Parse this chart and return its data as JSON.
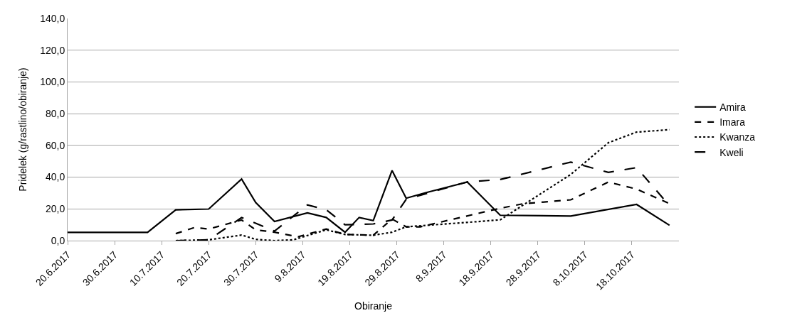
{
  "chart_data": {
    "type": "line",
    "xlabel": "Obiranje",
    "ylabel": "Pridelek (g/rastlino/obiranje)",
    "xlim": [
      "2017-06-20",
      "2017-10-28"
    ],
    "xticks": [
      {
        "value": "2017-06-20",
        "label": "20.6.2017"
      },
      {
        "value": "2017-06-30",
        "label": "30.6.2017"
      },
      {
        "value": "2017-07-10",
        "label": "10.7.2017"
      },
      {
        "value": "2017-07-20",
        "label": "20.7.2017"
      },
      {
        "value": "2017-07-30",
        "label": "30.7.2017"
      },
      {
        "value": "2017-08-09",
        "label": "9.8.2017"
      },
      {
        "value": "2017-08-19",
        "label": "19.8.2017"
      },
      {
        "value": "2017-08-29",
        "label": "29.8.2017"
      },
      {
        "value": "2017-09-08",
        "label": "8.9.2017"
      },
      {
        "value": "2017-09-18",
        "label": "18.9.2017"
      },
      {
        "value": "2017-09-28",
        "label": "28.9.2017"
      },
      {
        "value": "2017-10-08",
        "label": "8.10.2017"
      },
      {
        "value": "2017-10-18",
        "label": "18.10.2017"
      }
    ],
    "ylim": [
      0,
      140
    ],
    "yticks": [
      {
        "value": 0,
        "label": "0,0"
      },
      {
        "value": 20,
        "label": "20,0"
      },
      {
        "value": 40,
        "label": "40,0"
      },
      {
        "value": 60,
        "label": "60,0"
      },
      {
        "value": 80,
        "label": "80,0"
      },
      {
        "value": 100,
        "label": "100,0"
      },
      {
        "value": 120,
        "label": "120,0"
      },
      {
        "value": 140,
        "label": "140,0"
      }
    ],
    "grid": "y",
    "legend": "right",
    "marker": "none",
    "series": [
      {
        "name": "Amira",
        "color": "#000000",
        "line_style": "solid",
        "x": [
          "2017-06-20",
          "2017-07-07",
          "2017-07-13",
          "2017-07-20",
          "2017-07-27",
          "2017-07-30",
          "2017-08-03",
          "2017-08-10",
          "2017-08-14",
          "2017-08-18",
          "2017-08-21",
          "2017-08-24",
          "2017-08-28",
          "2017-08-31",
          "2017-09-04",
          "2017-09-13",
          "2017-09-20",
          "2017-10-05",
          "2017-10-19",
          "2017-10-26"
        ],
        "values": [
          5.2,
          5.2,
          19.4,
          19.9,
          38.8,
          24,
          12.1,
          17.5,
          14.6,
          5.3,
          14.6,
          12.6,
          44.2,
          26.7,
          30.1,
          36.9,
          16,
          15.5,
          22.8,
          9.7
        ]
      },
      {
        "name": "Imara",
        "color": "#000000",
        "line_style": "dashed",
        "x": [
          "2017-07-13",
          "2017-07-17",
          "2017-07-20",
          "2017-07-27",
          "2017-07-30",
          "2017-08-03",
          "2017-08-08",
          "2017-08-14",
          "2017-08-18",
          "2017-08-24",
          "2017-08-28",
          "2017-08-31",
          "2017-09-03",
          "2017-09-20",
          "2017-09-25",
          "2017-10-05",
          "2017-10-13",
          "2017-10-19",
          "2017-10-26"
        ],
        "values": [
          4.4,
          8.3,
          7.3,
          13,
          6.8,
          5.3,
          2.4,
          7.3,
          3.9,
          3.4,
          13.6,
          8.7,
          8.7,
          20.4,
          23.3,
          25.7,
          36.9,
          32.5,
          23.3
        ]
      },
      {
        "name": "Kwanza",
        "color": "#000000",
        "line_style": "dotted",
        "x": [
          "2017-07-13",
          "2017-07-20",
          "2017-07-27",
          "2017-07-30",
          "2017-08-03",
          "2017-08-07",
          "2017-08-14",
          "2017-08-18",
          "2017-08-24",
          "2017-08-28",
          "2017-08-31",
          "2017-09-13",
          "2017-09-20",
          "2017-10-05",
          "2017-10-13",
          "2017-10-19",
          "2017-10-26"
        ],
        "values": [
          0,
          0.5,
          3.5,
          0.8,
          0,
          0.5,
          6.8,
          3.9,
          3.4,
          5.3,
          8.7,
          11.5,
          13.1,
          41.7,
          61.7,
          68.4,
          69.9
        ]
      },
      {
        "name": "Kweli",
        "color": "#000000",
        "line_style": "longdash",
        "x": [
          "2017-07-13",
          "2017-07-20",
          "2017-07-27",
          "2017-07-30",
          "2017-08-03",
          "2017-08-10",
          "2017-08-14",
          "2017-08-18",
          "2017-08-24",
          "2017-08-28",
          "2017-08-31",
          "2017-09-13",
          "2017-09-20",
          "2017-10-05",
          "2017-10-13",
          "2017-10-19",
          "2017-10-26"
        ],
        "values": [
          0,
          0.5,
          14.5,
          11,
          6,
          22.5,
          19.5,
          10,
          10.5,
          13,
          26,
          37,
          38.5,
          49.5,
          43,
          46,
          22
        ]
      }
    ]
  }
}
